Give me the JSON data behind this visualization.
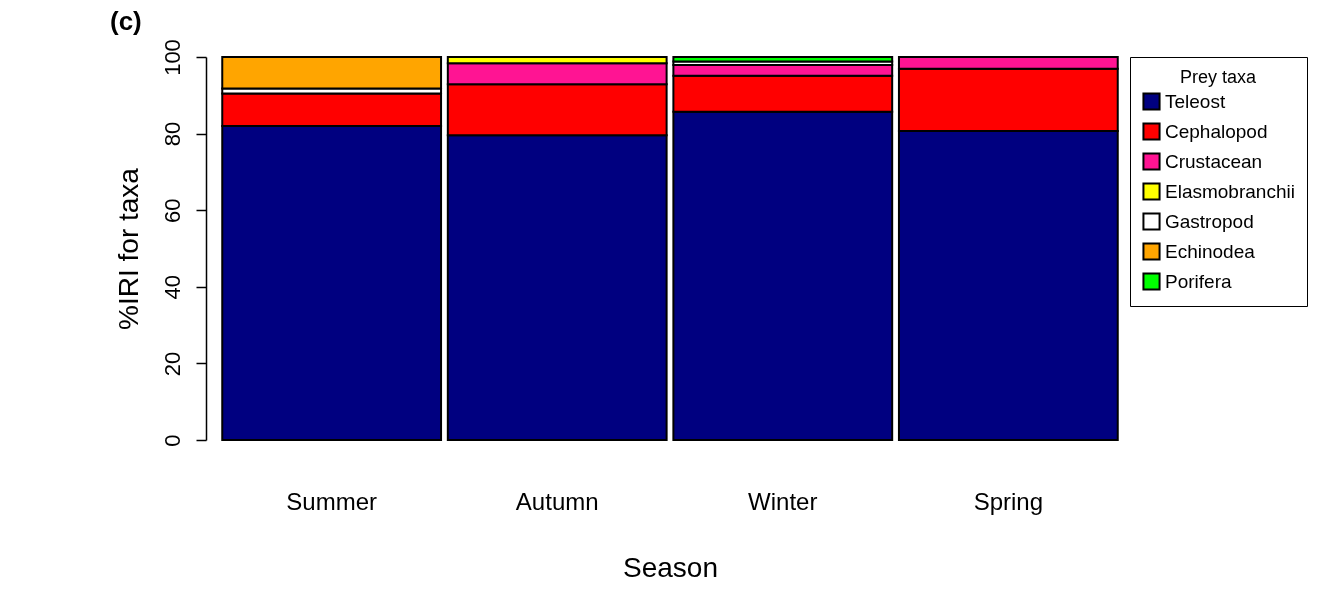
{
  "chart_data": {
    "type": "bar",
    "title": "(c)",
    "xlabel": "Season",
    "ylabel": "%IRI for taxa",
    "legend_title": "Prey taxa",
    "categories": [
      "Summer",
      "Autumn",
      "Winter",
      "Spring"
    ],
    "stacked": true,
    "ylim": [
      0,
      100
    ],
    "yticks": [
      0,
      20,
      40,
      60,
      80,
      100
    ],
    "grid": false,
    "legend": "top right",
    "series": [
      {
        "name": "Teleost",
        "color": "#000080",
        "values": [
          82.0,
          79.6,
          85.7,
          80.7
        ]
      },
      {
        "name": "Cephalopod",
        "color": "#ff0000",
        "values": [
          8.5,
          13.3,
          9.4,
          16.2
        ]
      },
      {
        "name": "Crustacean",
        "color": "#ff1493",
        "values": [
          null,
          5.5,
          2.8,
          3.1
        ]
      },
      {
        "name": "Elasmobranchii",
        "color": "#ffff00",
        "values": [
          null,
          1.6,
          null,
          null
        ]
      },
      {
        "name": "Gastropod",
        "color": "#ffffff",
        "values": [
          1.3,
          null,
          0.9,
          null
        ]
      },
      {
        "name": "Echinodea",
        "color": "#ffa500",
        "values": [
          8.2,
          null,
          null,
          null
        ]
      },
      {
        "name": "Porifera",
        "color": "#00ff00",
        "values": [
          null,
          null,
          1.2,
          null
        ]
      }
    ]
  }
}
